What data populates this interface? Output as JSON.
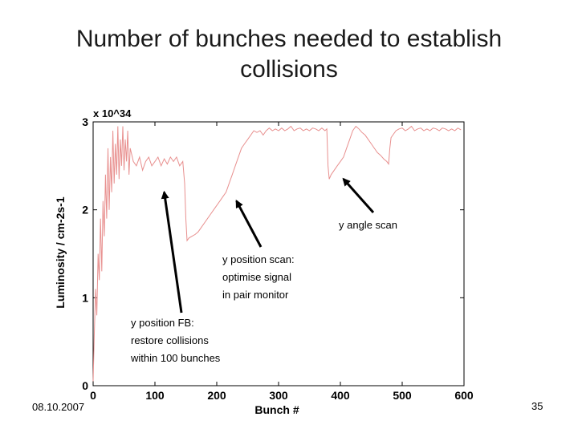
{
  "slide": {
    "title_line1": "Number of bunches needed to establish",
    "title_line2": "collisions",
    "date": "08.10.2007",
    "page": "35"
  },
  "chart_data": {
    "type": "line",
    "xlabel": "Bunch #",
    "ylabel": "Luminosity / cm-2s-1",
    "y_multiplier": "x 10^34",
    "xlim": [
      0,
      600
    ],
    "ylim": [
      0,
      3
    ],
    "xticks": [
      0,
      100,
      200,
      300,
      400,
      500,
      600
    ],
    "yticks": [
      0,
      1,
      2,
      3
    ],
    "grid": false,
    "series": [
      {
        "color": "#e8908f",
        "x": [
          0,
          2,
          4,
          6,
          8,
          10,
          12,
          14,
          16,
          18,
          20,
          22,
          24,
          26,
          28,
          30,
          32,
          34,
          36,
          38,
          40,
          42,
          44,
          46,
          48,
          50,
          52,
          54,
          56,
          58,
          60,
          65,
          70,
          75,
          80,
          85,
          90,
          95,
          100,
          105,
          110,
          115,
          120,
          125,
          130,
          135,
          140,
          145,
          148,
          150,
          152,
          155,
          160,
          165,
          170,
          175,
          180,
          185,
          190,
          195,
          200,
          205,
          210,
          215,
          220,
          225,
          230,
          235,
          240,
          245,
          250,
          255,
          260,
          265,
          270,
          275,
          280,
          285,
          290,
          295,
          300,
          305,
          310,
          315,
          320,
          325,
          330,
          335,
          340,
          345,
          350,
          355,
          360,
          365,
          370,
          375,
          378,
          380,
          382,
          385,
          390,
          395,
          400,
          405,
          410,
          415,
          420,
          425,
          430,
          435,
          440,
          445,
          450,
          455,
          460,
          465,
          470,
          475,
          478,
          480,
          482,
          485,
          490,
          495,
          500,
          505,
          510,
          515,
          520,
          525,
          530,
          535,
          540,
          545,
          550,
          555,
          560,
          565,
          570,
          575,
          580,
          585,
          590,
          595
        ],
        "y": [
          0.05,
          0.6,
          1.1,
          0.8,
          1.5,
          1.2,
          1.9,
          1.3,
          2.1,
          1.7,
          2.4,
          1.9,
          2.7,
          2.0,
          2.6,
          2.2,
          2.9,
          2.3,
          2.75,
          2.4,
          2.95,
          2.35,
          2.8,
          2.5,
          2.95,
          2.45,
          2.8,
          2.55,
          2.9,
          2.4,
          2.7,
          2.55,
          2.5,
          2.6,
          2.45,
          2.55,
          2.6,
          2.5,
          2.55,
          2.6,
          2.5,
          2.58,
          2.52,
          2.6,
          2.55,
          2.6,
          2.5,
          2.55,
          2.3,
          1.9,
          1.65,
          1.68,
          1.7,
          1.72,
          1.75,
          1.8,
          1.85,
          1.9,
          1.95,
          2.0,
          2.05,
          2.1,
          2.15,
          2.2,
          2.3,
          2.4,
          2.5,
          2.6,
          2.7,
          2.75,
          2.8,
          2.85,
          2.9,
          2.88,
          2.9,
          2.85,
          2.9,
          2.93,
          2.9,
          2.92,
          2.9,
          2.93,
          2.9,
          2.92,
          2.95,
          2.9,
          2.92,
          2.93,
          2.9,
          2.92,
          2.9,
          2.93,
          2.92,
          2.9,
          2.93,
          2.9,
          2.92,
          2.5,
          2.35,
          2.4,
          2.45,
          2.5,
          2.55,
          2.6,
          2.7,
          2.8,
          2.9,
          2.95,
          2.92,
          2.88,
          2.85,
          2.8,
          2.75,
          2.7,
          2.65,
          2.62,
          2.58,
          2.55,
          2.52,
          2.7,
          2.82,
          2.85,
          2.9,
          2.92,
          2.93,
          2.9,
          2.92,
          2.95,
          2.9,
          2.92,
          2.93,
          2.9,
          2.92,
          2.9,
          2.93,
          2.92,
          2.9,
          2.93,
          2.92,
          2.9,
          2.92,
          2.9,
          2.93,
          2.91
        ]
      }
    ],
    "annotations": [
      {
        "lines": [
          "y angle scan"
        ],
        "arrow_to": [
          405,
          2.35
        ]
      },
      {
        "lines": [
          "y position scan:",
          "optimise signal",
          "in pair monitor"
        ],
        "arrow_to": [
          232,
          2.1
        ]
      },
      {
        "lines": [
          "y position FB:",
          "restore collisions",
          "within 100 bunches"
        ],
        "arrow_to": [
          115,
          2.2
        ]
      }
    ]
  }
}
